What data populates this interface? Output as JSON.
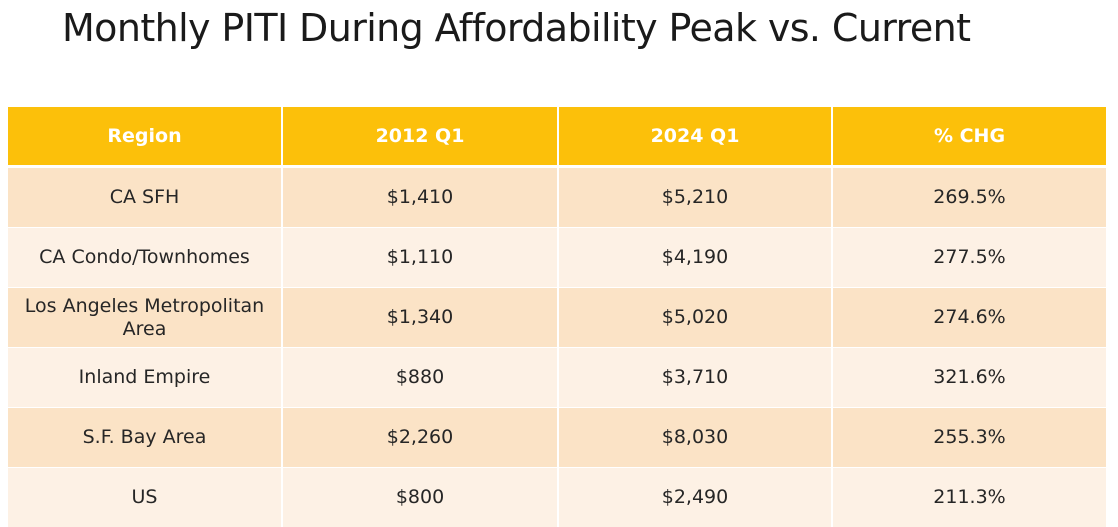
{
  "title": "Monthly PITI During Affordability Peak vs. Current",
  "table": {
    "headers": [
      "Region",
      "2012 Q1",
      "2024 Q1",
      "% CHG"
    ],
    "rows": [
      {
        "region": "CA SFH",
        "q2012": "$1,410",
        "q2024": "$5,210",
        "chg": "269.5%"
      },
      {
        "region": "CA Condo/Townhomes",
        "q2012": "$1,110",
        "q2024": "$4,190",
        "chg": "277.5%"
      },
      {
        "region": "Los Angeles Metropolitan Area",
        "q2012": "$1,340",
        "q2024": "$5,020",
        "chg": "274.6%"
      },
      {
        "region": "Inland Empire",
        "q2012": "$880",
        "q2024": "$3,710",
        "chg": "321.6%"
      },
      {
        "region": "S.F. Bay Area",
        "q2012": "$2,260",
        "q2024": "$8,030",
        "chg": "255.3%"
      },
      {
        "region": "US",
        "q2012": "$800",
        "q2024": "$2,490",
        "chg": "211.3%"
      }
    ]
  },
  "colors": {
    "header_bg": "#fcc00a",
    "header_text": "#ffffff",
    "row_band_dark": "#fbe3c6",
    "row_band_light": "#fdf1e5"
  }
}
